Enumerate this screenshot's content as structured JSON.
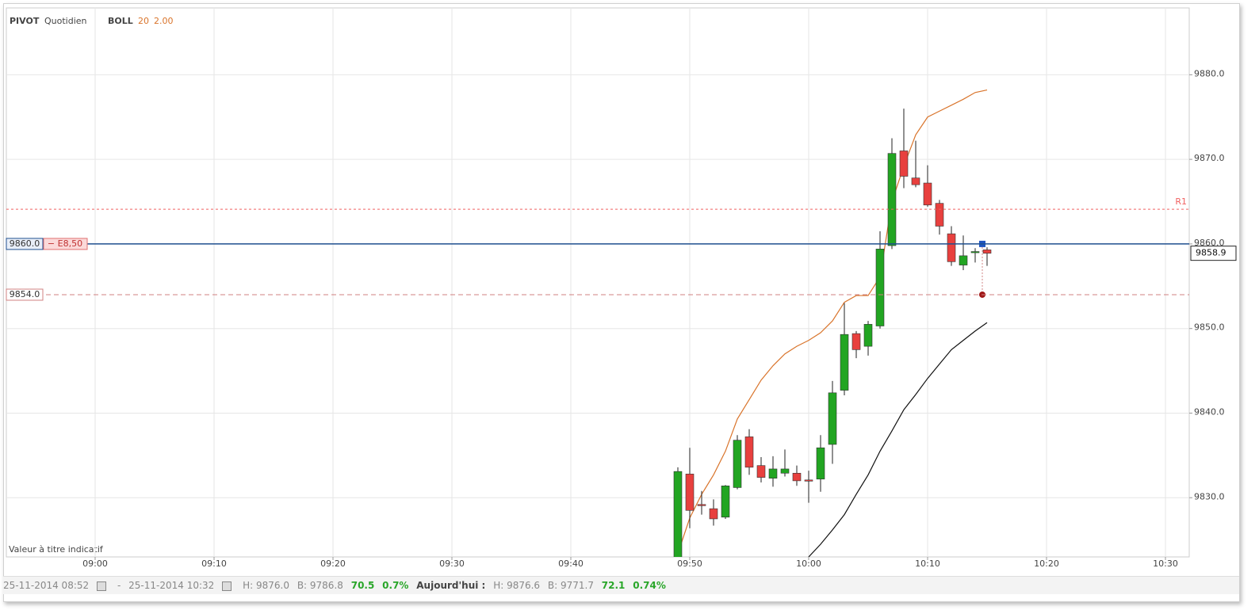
{
  "header": {
    "pivot": "PIVOT",
    "period": "Quotidien",
    "boll": "BOLL",
    "boll_n": 20,
    "boll_k": "2.00",
    "disclaimer": "Valeur à titre indicatif"
  },
  "footer": {
    "from": "25-11-2014 08:52",
    "sep": "-",
    "to": "25-11-2014 10:32",
    "high": "H: 9876.0",
    "low": "B: 9786.8",
    "change": "70.5",
    "change_pct": "0.7%",
    "today": "Aujourd'hui :",
    "today_high": "H: 9876.6",
    "today_low": "B: 9771.7",
    "today_change": "72.1",
    "today_change_pct": "0.74%"
  },
  "chart_data": {
    "type": "candlestick",
    "x": [
      "09:49",
      "09:50",
      "09:51",
      "09:52",
      "09:53",
      "09:54",
      "09:55",
      "09:56",
      "09:57",
      "09:58",
      "09:59",
      "10:00",
      "10:01",
      "10:02",
      "10:03",
      "10:04",
      "10:05",
      "10:06",
      "10:07",
      "10:08",
      "10:09",
      "10:10",
      "10:11",
      "10:12",
      "10:13",
      "10:14",
      "10:15"
    ],
    "open": [
      9822,
      9832.8,
      9829.2,
      9828.7,
      9827.7,
      9831.2,
      9837.2,
      9833.8,
      9832.3,
      9832.9,
      9832.9,
      9832.1,
      9832.2,
      9836.3,
      9842.7,
      9849.4,
      9847.9,
      9850.3,
      9859.8,
      9871,
      9867.8,
      9867.2,
      9864.8,
      9861.2,
      9857.5,
      9859,
      9859.3
    ],
    "high": [
      9833.6,
      9835.9,
      9830.8,
      9829.8,
      9831.5,
      9837.4,
      9838.1,
      9834.8,
      9834.9,
      9835.7,
      9833.8,
      9833.2,
      9837.4,
      9843.8,
      9853,
      9849.7,
      9850.9,
      9861.5,
      9872.5,
      9876,
      9872.2,
      9869.3,
      9865.2,
      9862.1,
      9861,
      9859.5,
      9859.6
    ],
    "low": [
      9821,
      9826.4,
      9828,
      9826.7,
      9827.5,
      9831,
      9832.7,
      9831.8,
      9831.3,
      9832.5,
      9831.4,
      9829.4,
      9830.7,
      9834,
      9842.1,
      9846.5,
      9846.8,
      9850,
      9859.4,
      9866.6,
      9866.7,
      9864.4,
      9861.1,
      9857.4,
      9856.9,
      9857.8,
      9857.4
    ],
    "close": [
      9833.1,
      9828.5,
      9829.1,
      9827.5,
      9831.4,
      9836.8,
      9833.6,
      9832.4,
      9833.4,
      9833.4,
      9832,
      9832,
      9835.9,
      9842.4,
      9849.3,
      9847.5,
      9850.5,
      9859.4,
      9870.7,
      9868,
      9867,
      9864.6,
      9862.1,
      9857.9,
      9858.6,
      9859.1,
      9858.9
    ],
    "up_color": "#22a522",
    "down_color": "#e8403e",
    "bollinger": [
      {
        "color": "#d9742b",
        "values": [
          9823.4,
          9827.6,
          9830.4,
          9832.7,
          9835.5,
          9839.3,
          9841.6,
          9843.9,
          9845.6,
          9847,
          9847.9,
          9848.6,
          9849.5,
          9850.9,
          9853.1,
          9853.9,
          9853.9,
          9856.1,
          9865,
          9869.2,
          9872.9,
          9875,
          9875.7,
          9876.4,
          9877.1,
          9877.9,
          9878.2
        ]
      },
      {
        "color": "#111111",
        "values": [
          null,
          null,
          null,
          null,
          null,
          null,
          null,
          null,
          null,
          null,
          null,
          9823,
          9824.5,
          9826.2,
          9828,
          9830.4,
          9832.7,
          9835.5,
          9837.9,
          9840.4,
          9842.2,
          9844.1,
          9845.8,
          9847.5,
          9848.6,
          9849.7,
          9850.7
        ]
      }
    ],
    "levels": [
      {
        "value": 9864.1,
        "label": "R1",
        "color": "#f06060"
      },
      {
        "value": 9860,
        "label": "9860.0",
        "tag": "− E8,50",
        "color": "#1f4f8f"
      },
      {
        "value": 9854,
        "label": "9854.0",
        "color": "#d08080"
      }
    ],
    "last": 9858.9,
    "ylim": [
      9823,
      9887.9
    ],
    "yticks": [
      {
        "value": 9830,
        "label": "9830.0"
      },
      {
        "value": 9840,
        "label": "9840.0"
      },
      {
        "value": 9850,
        "label": "9850.0"
      },
      {
        "value": 9860,
        "label": "9860.0"
      },
      {
        "value": 9870,
        "label": "9870.0"
      },
      {
        "value": 9880,
        "label": "9880.0"
      }
    ],
    "xlim": [
      "08:52",
      "10:32"
    ],
    "xticks": [
      "09:00",
      "09:10",
      "09:20",
      "09:30",
      "09:40",
      "09:50",
      "10:00",
      "10:10",
      "10:20",
      "10:30"
    ],
    "grid": true
  }
}
